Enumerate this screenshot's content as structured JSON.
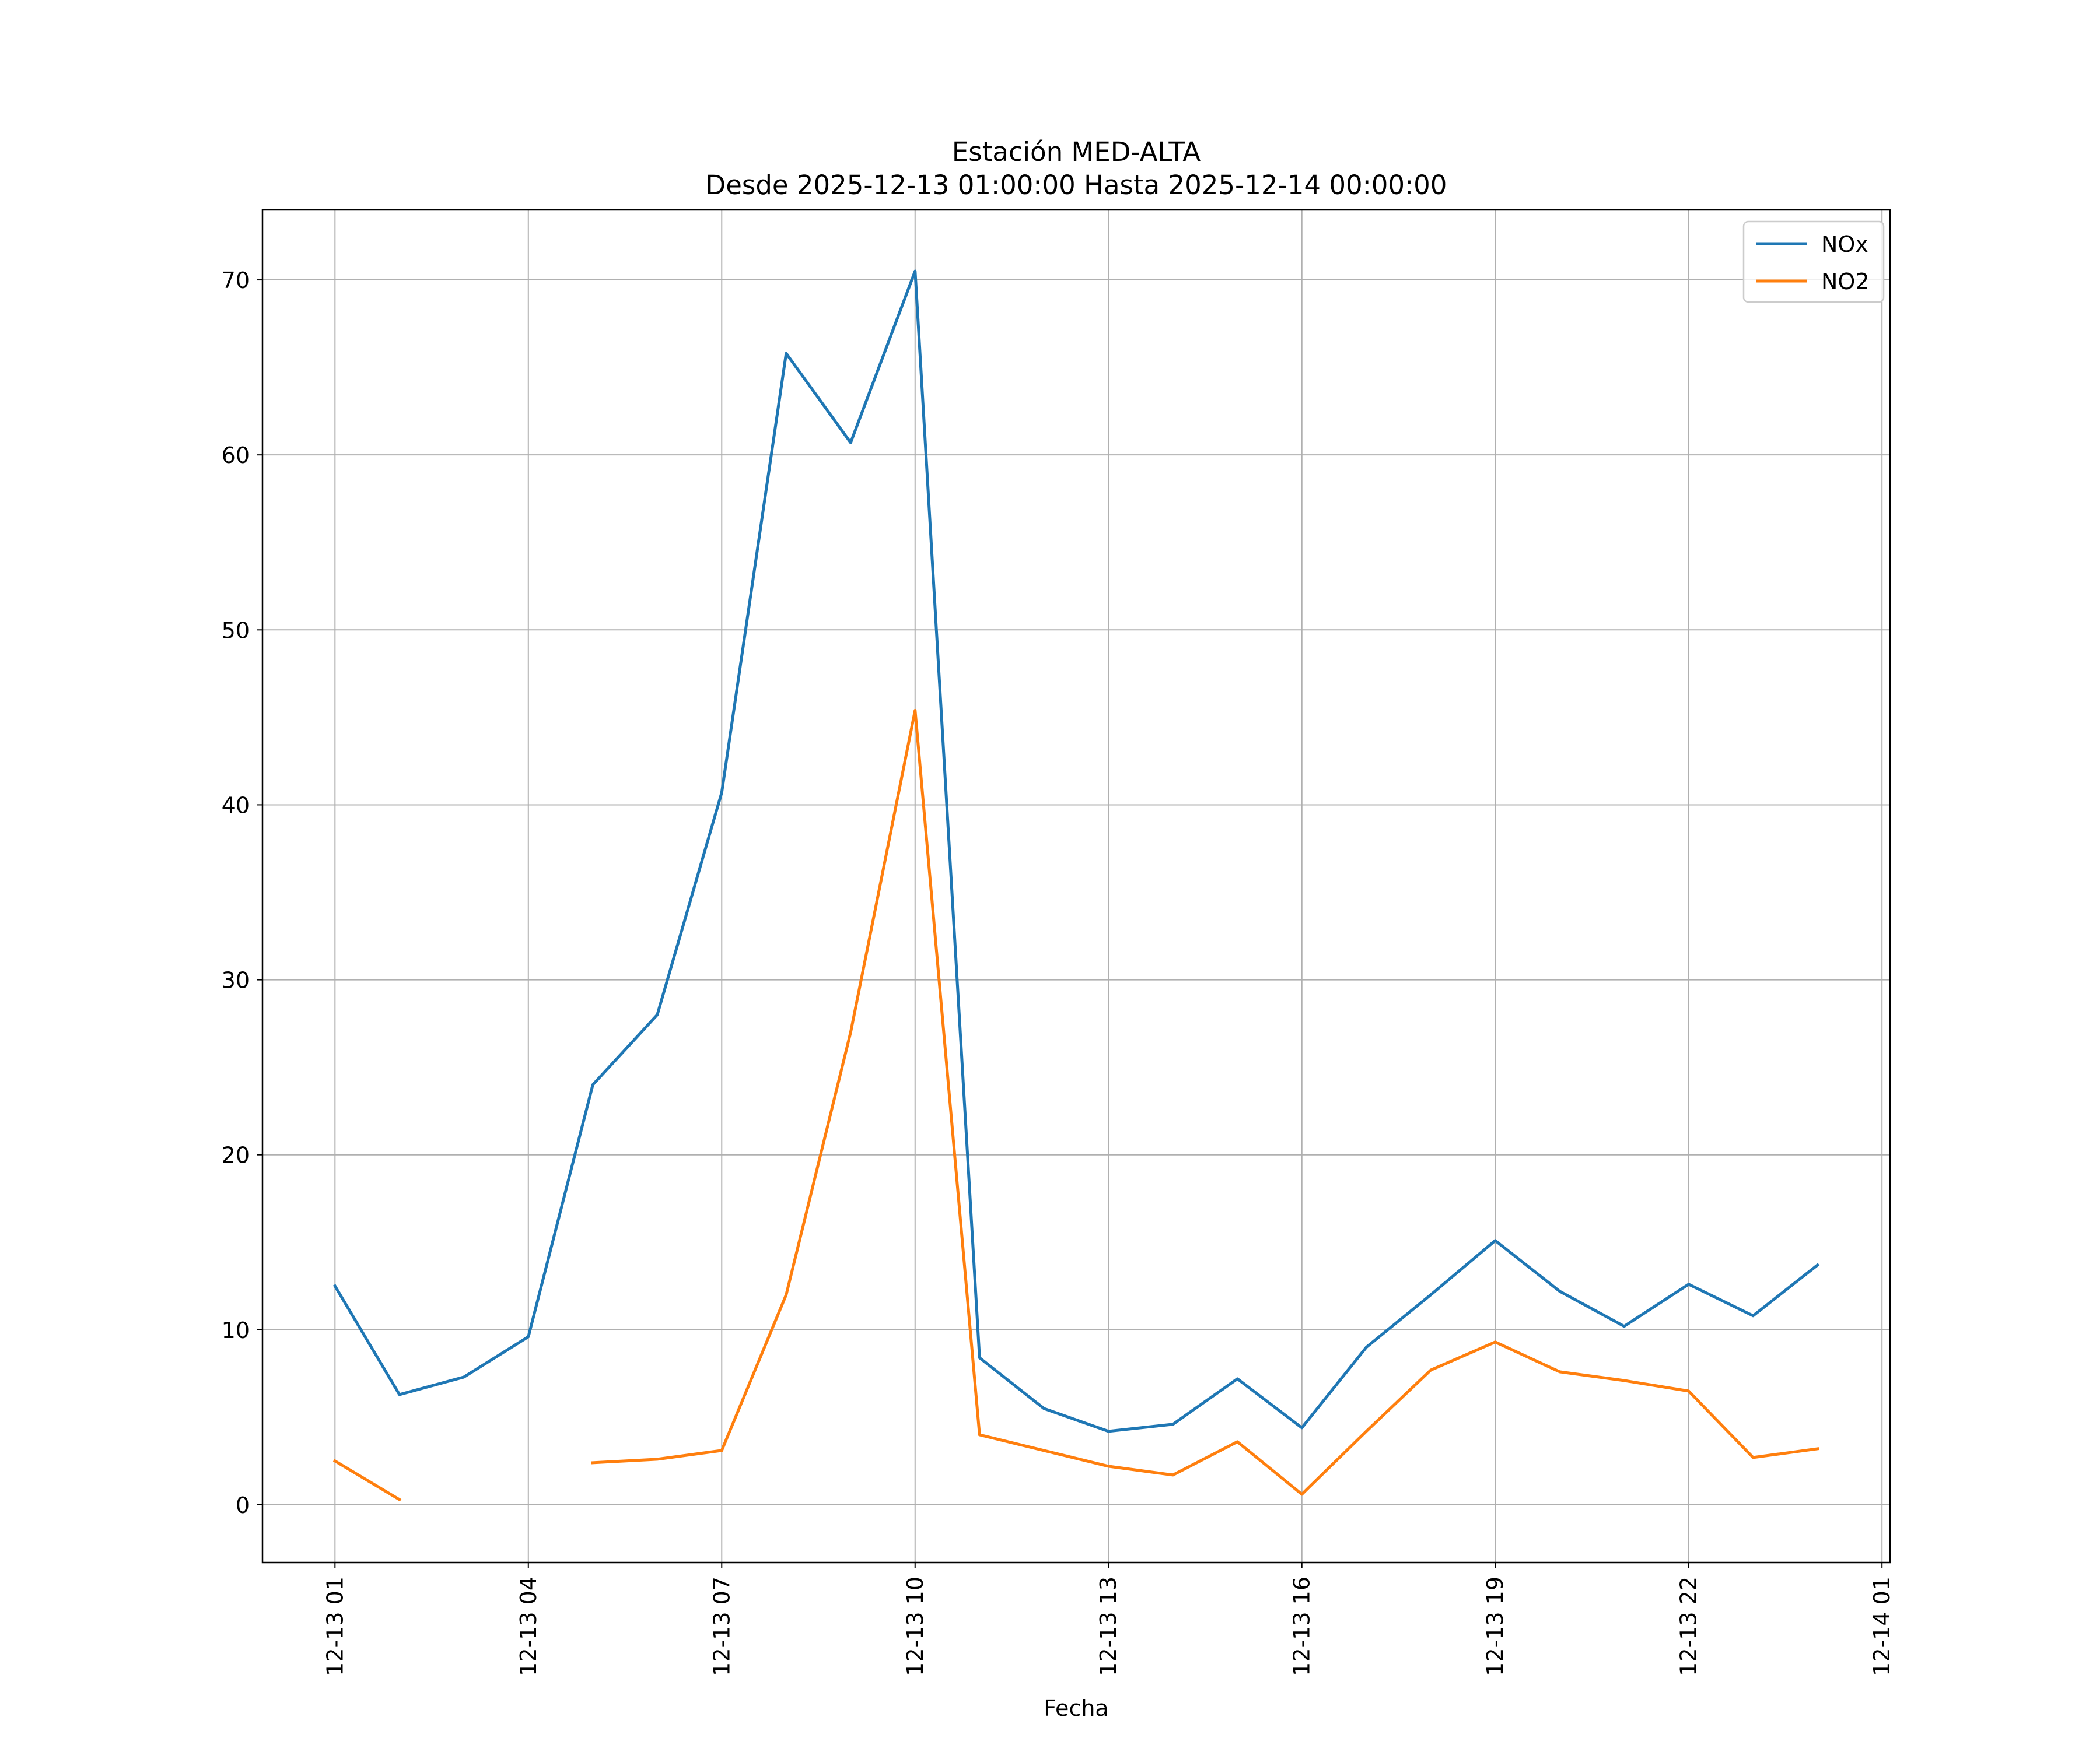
{
  "chart_data": {
    "type": "line",
    "title_line1": "Estación MED-ALTA",
    "title_line2": "Desde 2025-12-13 01:00:00 Hasta 2025-12-14 00:00:00",
    "xlabel": "Fecha",
    "ylabel": "",
    "grid": true,
    "legend_position": "top-right",
    "x_hours": [
      1,
      2,
      3,
      4,
      5,
      6,
      7,
      8,
      9,
      10,
      11,
      12,
      13,
      14,
      15,
      16,
      17,
      18,
      19,
      20,
      21,
      22,
      23,
      24
    ],
    "xlim_hours": [
      -0.125,
      25.125
    ],
    "ylim": [
      -3.3,
      74.0
    ],
    "x_ticks": [
      {
        "hour": 1,
        "label": "12-13 01"
      },
      {
        "hour": 4,
        "label": "12-13 04"
      },
      {
        "hour": 7,
        "label": "12-13 07"
      },
      {
        "hour": 10,
        "label": "12-13 10"
      },
      {
        "hour": 13,
        "label": "12-13 13"
      },
      {
        "hour": 16,
        "label": "12-13 16"
      },
      {
        "hour": 19,
        "label": "12-13 19"
      },
      {
        "hour": 22,
        "label": "12-13 22"
      },
      {
        "hour": 25,
        "label": "12-14 01"
      }
    ],
    "y_ticks": [
      {
        "value": 0,
        "label": "0"
      },
      {
        "value": 10,
        "label": "10"
      },
      {
        "value": 20,
        "label": "20"
      },
      {
        "value": 30,
        "label": "30"
      },
      {
        "value": 40,
        "label": "40"
      },
      {
        "value": 50,
        "label": "50"
      },
      {
        "value": 60,
        "label": "60"
      },
      {
        "value": 70,
        "label": "70"
      }
    ],
    "series": [
      {
        "name": "NOx",
        "color": "#1f77b4",
        "values": [
          12.5,
          6.3,
          7.3,
          9.6,
          24.0,
          28.0,
          40.7,
          65.8,
          60.7,
          70.5,
          8.4,
          5.5,
          4.2,
          4.6,
          7.2,
          4.4,
          9.0,
          12.0,
          15.1,
          12.2,
          10.2,
          12.6,
          10.8,
          13.7
        ]
      },
      {
        "name": "NO2",
        "color": "#ff7f0e",
        "values": [
          2.5,
          0.3,
          null,
          null,
          2.4,
          2.6,
          3.1,
          12.0,
          27.0,
          45.4,
          4.0,
          3.1,
          2.2,
          1.7,
          3.6,
          0.6,
          4.2,
          7.7,
          9.3,
          7.6,
          7.1,
          6.5,
          2.7,
          3.2
        ]
      }
    ]
  }
}
